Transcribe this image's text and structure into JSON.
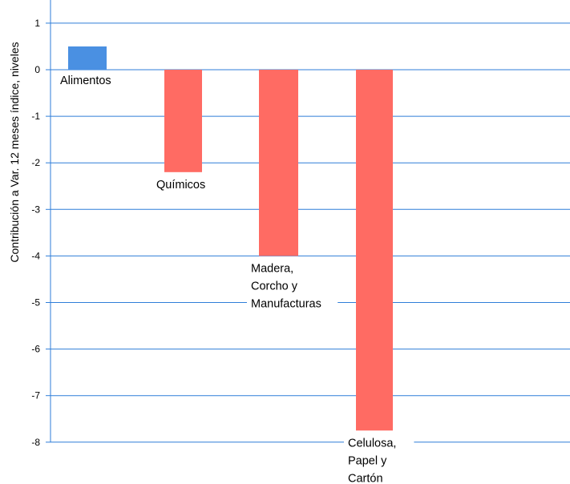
{
  "chart_data": {
    "type": "bar",
    "title": "",
    "xlabel": "",
    "ylabel": "Contribución a Var. 12 meses índice, niveles",
    "ylim": [
      -8.3,
      1.5
    ],
    "yticks": [
      1,
      0,
      -1,
      -2,
      -3,
      -4,
      -5,
      -6,
      -7,
      -8
    ],
    "grid": true,
    "categories": [
      "Alimentos",
      "Químicos",
      "Madera, Corcho y Manufacturas",
      "Celulosa, Papel y Cartón"
    ],
    "label_lines": [
      [
        "Alimentos"
      ],
      [
        "Químicos"
      ],
      [
        "Madera,",
        "Corcho y",
        "Manufacturas"
      ],
      [
        "Celulosa,",
        "Papel y",
        "Cartón"
      ]
    ],
    "values": [
      0.5,
      -2.2,
      -4.0,
      -7.75
    ],
    "colors": {
      "positive": "#4a90e2",
      "negative": "#ff6b63",
      "grid": "#2f7ed8",
      "axis": "#2f7ed8"
    }
  }
}
